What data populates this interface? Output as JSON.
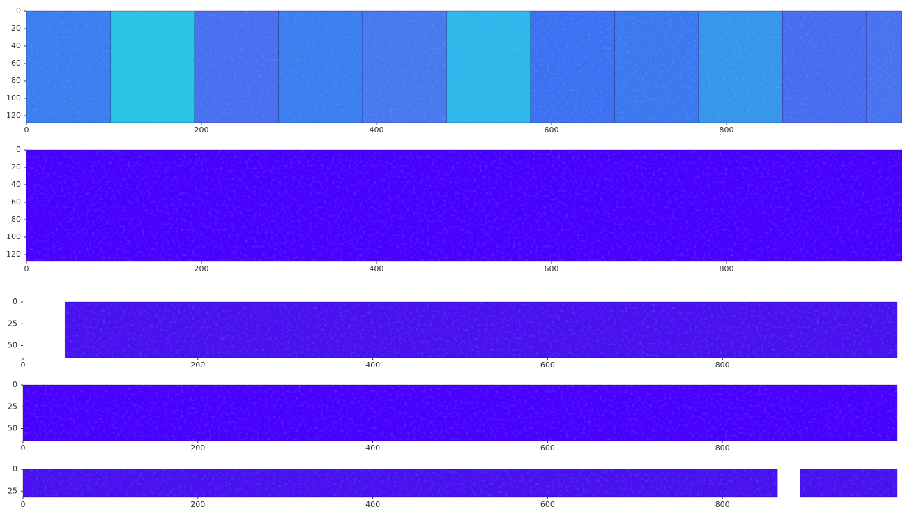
{
  "chart_data": [
    {
      "type": "image",
      "xlim": [
        0,
        1000
      ],
      "ylim": [
        128,
        0
      ],
      "xticks": [
        0,
        200,
        400,
        600,
        800
      ],
      "yticks": [
        0,
        20,
        40,
        60,
        80,
        100,
        120
      ],
      "tiles": [
        {
          "x": [
            0,
            96
          ],
          "color": "#3d7ef0"
        },
        {
          "x": [
            96,
            192
          ],
          "color": "#2bc2e6"
        },
        {
          "x": [
            192,
            288
          ],
          "color": "#4a6ff0"
        },
        {
          "x": [
            288,
            384
          ],
          "color": "#3d7ef0"
        },
        {
          "x": [
            384,
            480
          ],
          "color": "#4a78ef"
        },
        {
          "x": [
            480,
            576
          ],
          "color": "#2fb6ea"
        },
        {
          "x": [
            576,
            672
          ],
          "color": "#3f70f2"
        },
        {
          "x": [
            672,
            768
          ],
          "color": "#3d78f0"
        },
        {
          "x": [
            768,
            864
          ],
          "color": "#3796ea"
        },
        {
          "x": [
            864,
            960
          ],
          "color": "#4a6cf0"
        },
        {
          "x": [
            960,
            1000
          ],
          "color": "#4a72f0"
        }
      ]
    },
    {
      "type": "image",
      "xlim": [
        0,
        1000
      ],
      "ylim": [
        128,
        0
      ],
      "xticks": [
        0,
        200,
        400,
        600,
        800
      ],
      "yticks": [
        0,
        20,
        40,
        60,
        80,
        100,
        120
      ],
      "tiles": [
        {
          "x": [
            0,
            1000
          ],
          "color": "#4a00ff"
        }
      ]
    },
    {
      "type": "image",
      "xlim": [
        0,
        1000
      ],
      "ylim": [
        64,
        0
      ],
      "xticks": [
        0,
        200,
        400,
        600,
        800
      ],
      "yticks": [
        0,
        25,
        50
      ],
      "tiles": [
        {
          "x": [
            48,
            1000
          ],
          "color": "#4a10f0"
        }
      ]
    },
    {
      "type": "image",
      "xlim": [
        0,
        1000
      ],
      "ylim": [
        64,
        0
      ],
      "xticks": [
        0,
        200,
        400,
        600,
        800
      ],
      "yticks": [
        0,
        25,
        50
      ],
      "tiles": [
        {
          "x": [
            0,
            1000
          ],
          "color": "#4a00ff"
        }
      ]
    },
    {
      "type": "image",
      "xlim": [
        0,
        1000
      ],
      "ylim": [
        32,
        0
      ],
      "xticks": [
        0,
        200,
        400,
        600,
        800
      ],
      "yticks": [
        0,
        25
      ],
      "tiles": [
        {
          "x": [
            0,
            863
          ],
          "color": "#4a10f0"
        },
        {
          "x": [
            889,
            1000
          ],
          "color": "#4a10f0"
        }
      ]
    }
  ]
}
